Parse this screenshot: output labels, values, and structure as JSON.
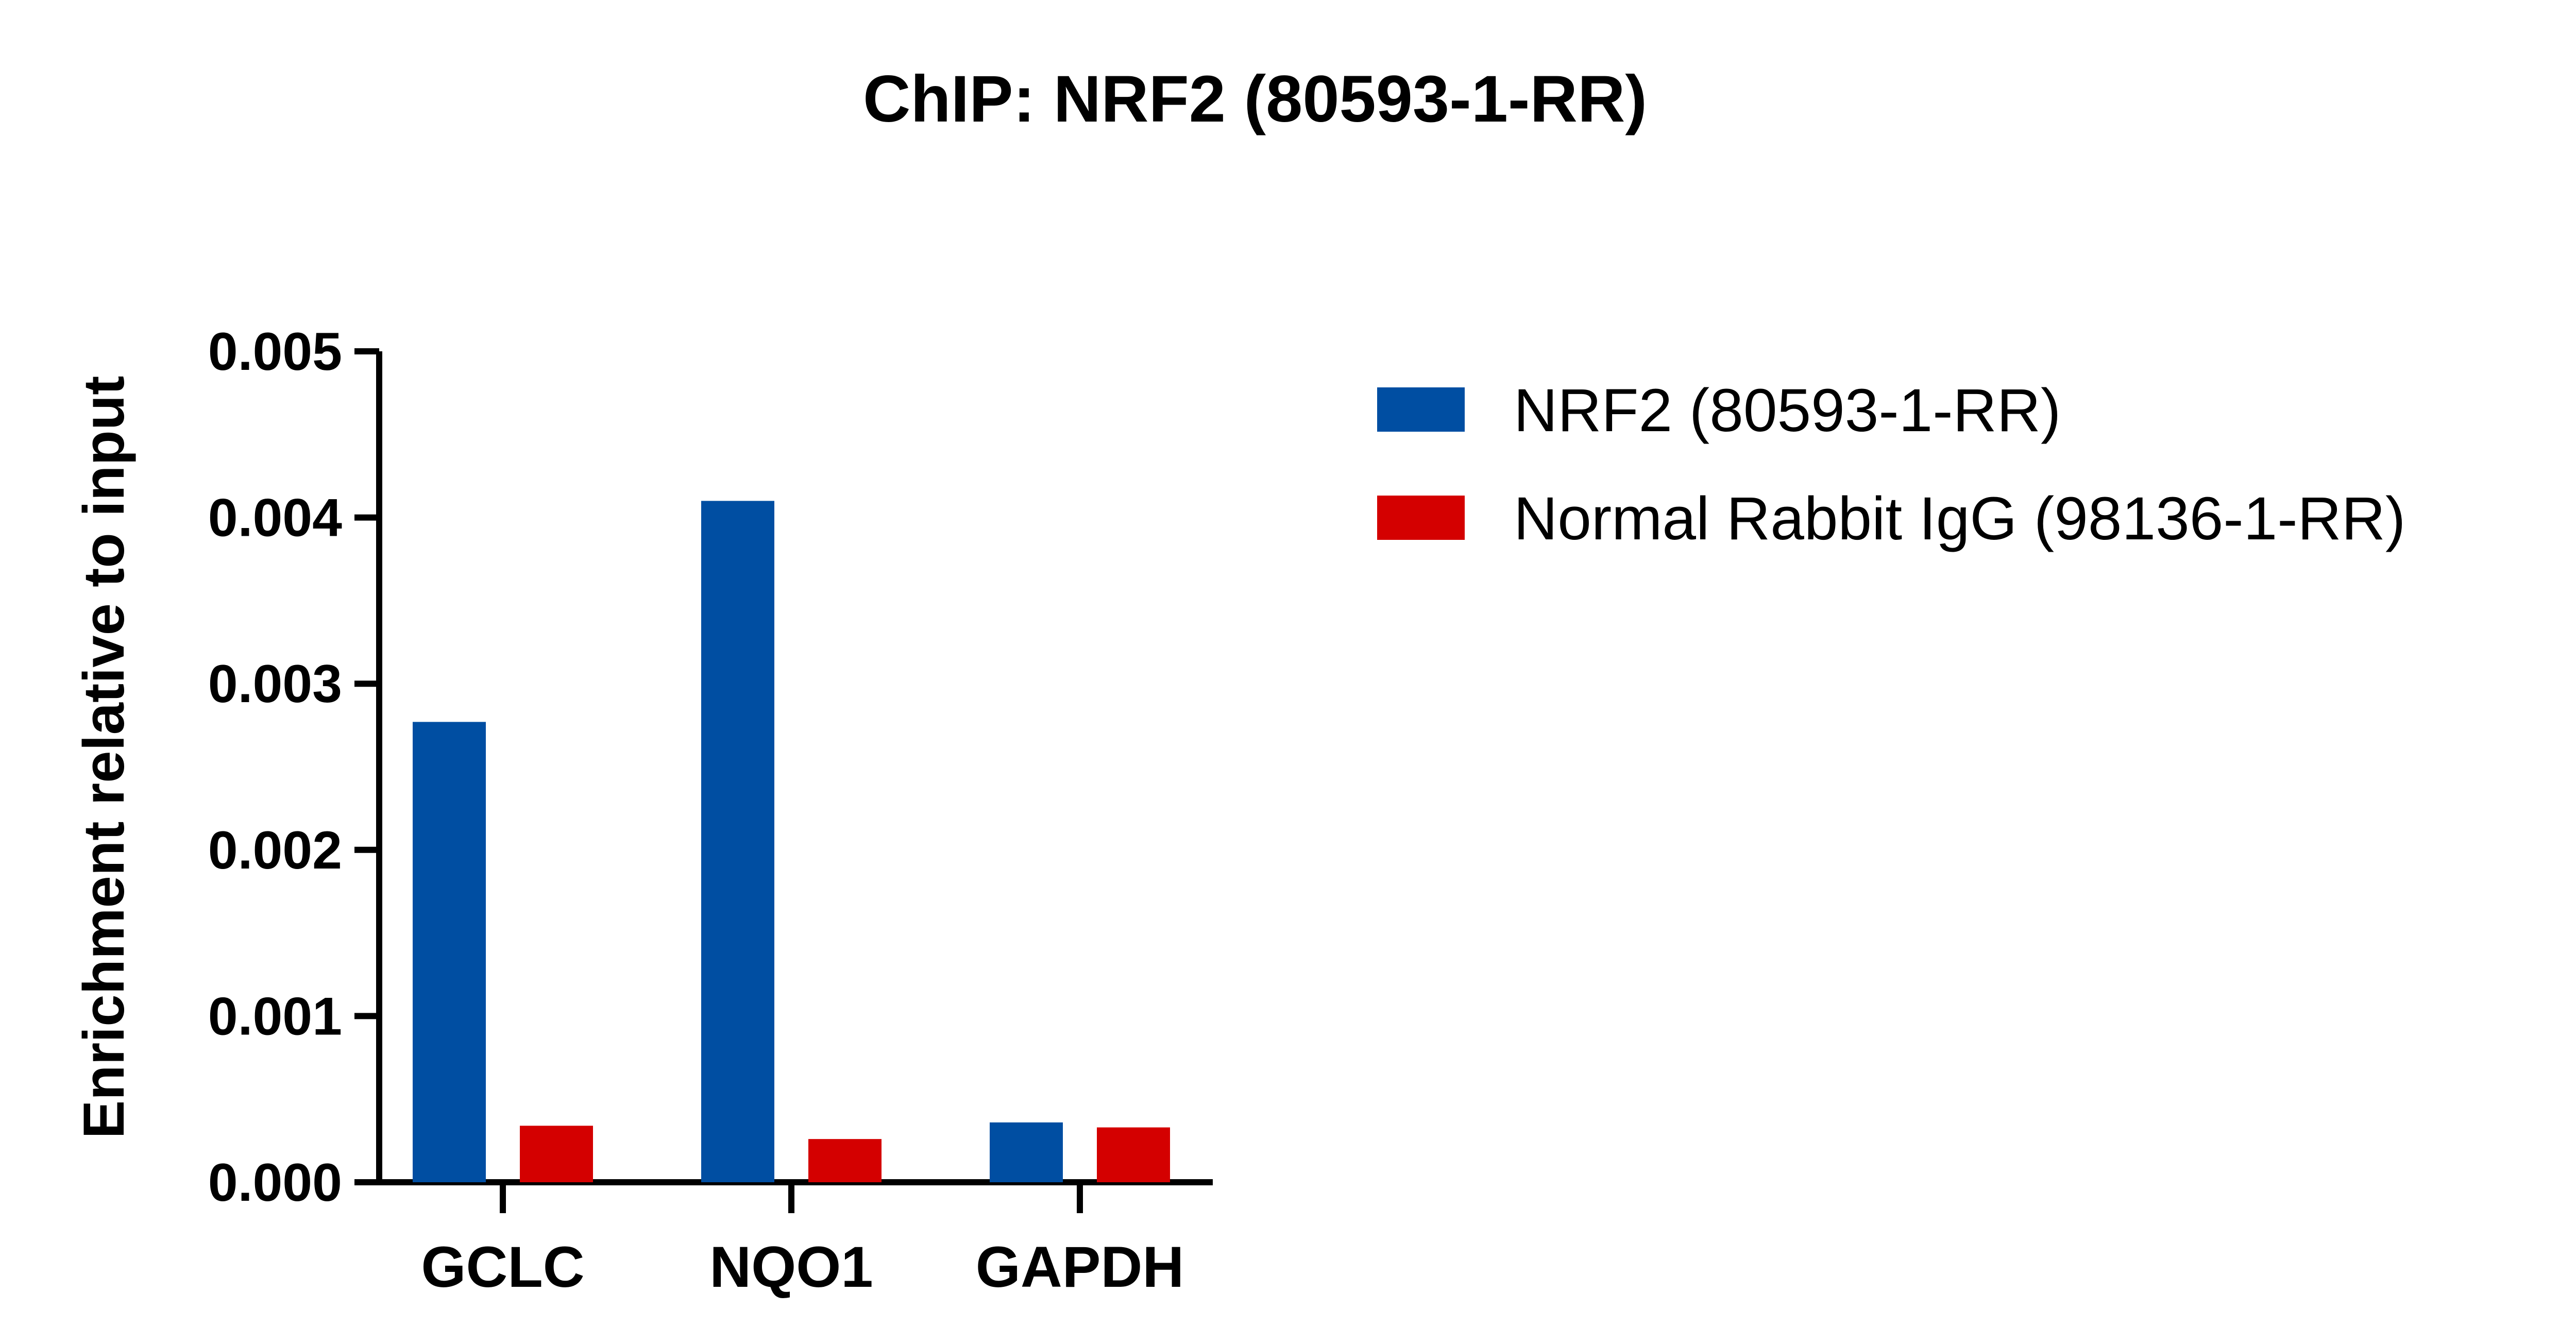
{
  "chart_data": {
    "type": "bar",
    "title": "ChIP: NRF2 (80593-1-RR)",
    "xlabel": "",
    "ylabel": "Enrichment relative to input",
    "categories": [
      "GCLC",
      "NQO1",
      "GAPDH"
    ],
    "series": [
      {
        "name": "NRF2 (80593-1-RR)",
        "color": "#004ea2",
        "values": [
          0.00277,
          0.0041,
          0.00036
        ]
      },
      {
        "name": "Normal Rabbit IgG (98136-1-RR)",
        "color": "#d40000",
        "values": [
          0.00034,
          0.00026,
          0.00033
        ]
      }
    ],
    "ylim": [
      0,
      0.005
    ],
    "yticks": [
      "0.000",
      "0.001",
      "0.002",
      "0.003",
      "0.004",
      "0.005"
    ],
    "grid": false,
    "legend_position": "right"
  }
}
